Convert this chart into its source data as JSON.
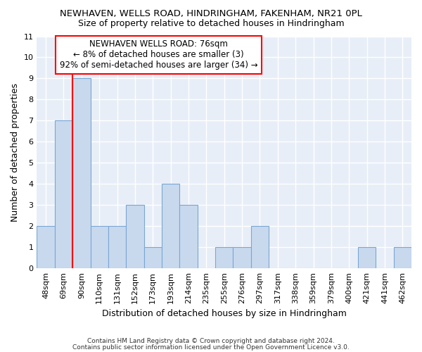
{
  "title": "NEWHAVEN, WELLS ROAD, HINDRINGHAM, FAKENHAM, NR21 0PL",
  "subtitle": "Size of property relative to detached houses in Hindringham",
  "xlabel": "Distribution of detached houses by size in Hindringham",
  "ylabel": "Number of detached properties",
  "categories": [
    "48sqm",
    "69sqm",
    "90sqm",
    "110sqm",
    "131sqm",
    "152sqm",
    "173sqm",
    "193sqm",
    "214sqm",
    "235sqm",
    "255sqm",
    "276sqm",
    "297sqm",
    "317sqm",
    "338sqm",
    "359sqm",
    "379sqm",
    "400sqm",
    "421sqm",
    "441sqm",
    "462sqm"
  ],
  "values": [
    2,
    7,
    9,
    2,
    2,
    3,
    1,
    4,
    3,
    0,
    1,
    1,
    2,
    0,
    0,
    0,
    0,
    0,
    1,
    0,
    1
  ],
  "bar_color": "#c8d9ee",
  "bar_edgecolor": "#7aa6d4",
  "bar_linewidth": 0.8,
  "ylim": [
    0,
    11
  ],
  "yticks": [
    0,
    1,
    2,
    3,
    4,
    5,
    6,
    7,
    8,
    9,
    10,
    11
  ],
  "redline_index": 1,
  "annotation_line1": "NEWHAVEN WELLS ROAD: 76sqm",
  "annotation_line2": "← 8% of detached houses are smaller (3)",
  "annotation_line3": "92% of semi-detached houses are larger (34) →",
  "footer_line1": "Contains HM Land Registry data © Crown copyright and database right 2024.",
  "footer_line2": "Contains public sector information licensed under the Open Government Licence v3.0.",
  "background_color": "#ffffff",
  "plot_bg_color": "#e8eef7",
  "grid_color": "#ffffff"
}
